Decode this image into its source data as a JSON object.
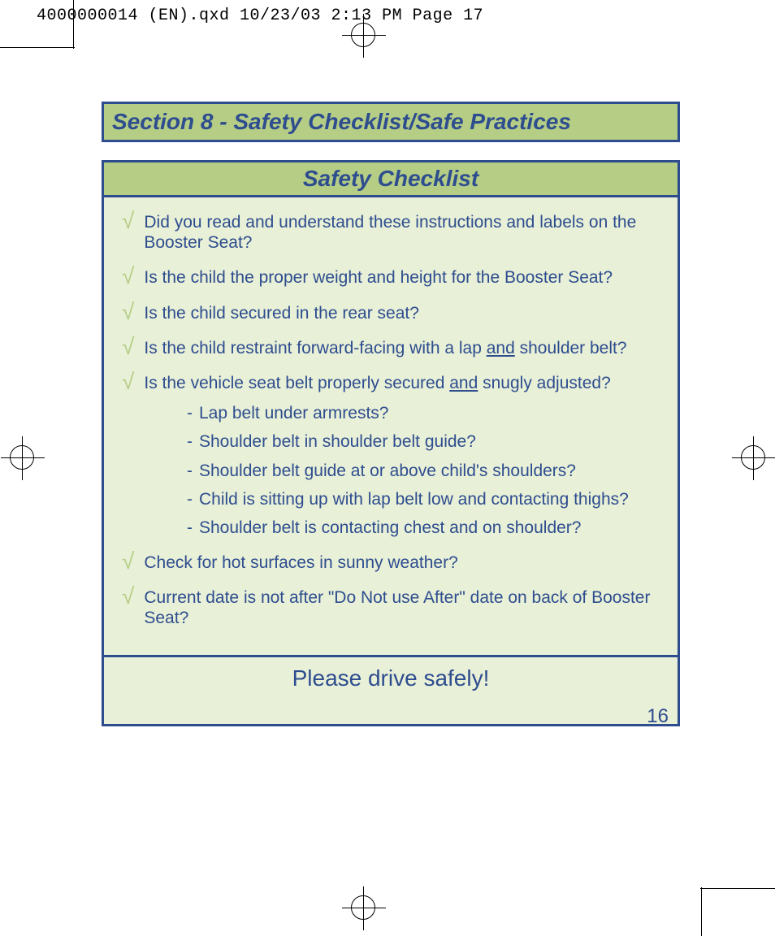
{
  "header": {
    "filename_line": "4000000014 (EN).qxd  10/23/03  2:13 PM  Page 17"
  },
  "section": {
    "title": "Section 8 - Safety Checklist/Safe Practices"
  },
  "checklist": {
    "title": "Safety Checklist",
    "items": [
      {
        "text": "Did you read and understand these instructions and labels on the Booster Seat?"
      },
      {
        "text": "Is the child the proper weight and height for the Booster Seat?"
      },
      {
        "text": "Is the child secured in the rear seat?"
      },
      {
        "text_parts": [
          "Is the child restraint forward-facing with a lap ",
          "and",
          " shoulder belt?"
        ],
        "underline_index": 1
      },
      {
        "text_parts": [
          "Is the vehicle seat belt properly secured ",
          "and",
          " snugly adjusted?"
        ],
        "underline_index": 1,
        "subitems": [
          "Lap belt under armrests?",
          "Shoulder belt in shoulder belt guide?",
          "Shoulder belt guide at or above child's shoulders?",
          "Child is sitting up with lap belt low and contacting thighs?",
          "Shoulder belt is contacting chest and on shoulder?"
        ]
      },
      {
        "text": "Check for hot surfaces in sunny weather?"
      },
      {
        "text": "Current date is not after \"Do Not use After\" date on back of Booster Seat?"
      }
    ],
    "footer": "Please drive safely!"
  },
  "page_number": "16",
  "colors": {
    "border_blue": "#2e4d8f",
    "text_blue": "#2e4d8f",
    "green_dark": "#b5cd85",
    "green_light": "#e8f0d7",
    "check_green": "#b5cd85"
  }
}
